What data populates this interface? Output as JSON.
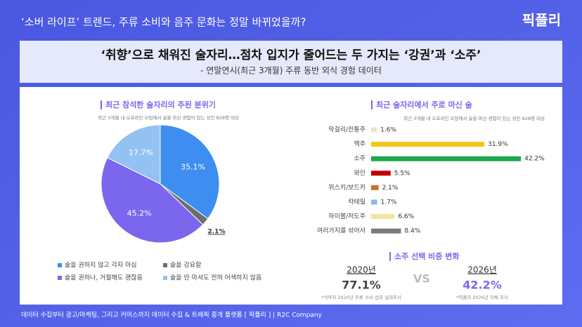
{
  "header": {
    "title": "‘소버 라이프’ 트렌드, 주류 소비와 음주 문화는 정말 바뀌었을까?",
    "logo": "픽플리"
  },
  "banner": {
    "title": "‘취향’으로 채워진 술자리…점차 입지가 줄어드는 두 가지는 ‘강권’과 ‘소주’",
    "subtitle": "- 연말연시(최근 3개월) 주류 동반 외식 경험 데이터"
  },
  "chart_data": [
    {
      "type": "pie",
      "title": "최근 참석한 술자리의 주된 분위기",
      "subtitle": "최근 3개월 내 오프라인 모임에서 술을 마신 경험이 있는 성인 828명 대상",
      "categories": [
        "술을 권하지 않고 각자 마심",
        "술을 강요함",
        "술을 권하나, 거절해도 괜찮음",
        "술을 안 마셔도 전혀 어색하지 않음"
      ],
      "values": [
        35.1,
        2.1,
        45.2,
        17.7
      ],
      "value_labels": [
        "35.1%",
        "2.1%",
        "45.2%",
        "17.7%"
      ],
      "colors": [
        "#3d8ef0",
        "#6e6e6e",
        "#7a67ee",
        "#93c2f2"
      ]
    },
    {
      "type": "hbar",
      "title": "최근 술자리에서 주로 마신 술",
      "subtitle": "최근 3개월 내 오프라인 모임에서 술을 마신 경험이 있는 성인 828명 대상",
      "categories": [
        "막걸리/전통주",
        "맥주",
        "소주",
        "와인",
        "위스키/보드카",
        "칵테일",
        "하이볼/저도주",
        "여러가지를 섞어서"
      ],
      "values": [
        1.6,
        31.9,
        42.2,
        5.5,
        2.1,
        1.7,
        6.6,
        8.4
      ],
      "value_labels": [
        "1.6%",
        "31.9%",
        "42.2%",
        "5.5%",
        "2.1%",
        "1.7%",
        "6.6%",
        "8.4%"
      ],
      "colors": [
        "#e9e2cf",
        "#f4c51a",
        "#1ba84b",
        "#c00000",
        "#d5692a",
        "#8ab6f2",
        "#f3e4a2",
        "#7a7a7a"
      ]
    }
  ],
  "comparison": {
    "title": "소주 선택 비중 변화",
    "vs": "VS",
    "items": [
      {
        "year": "2020년",
        "value": "77.1%",
        "note": "*식약처 2020년 주류 소비·섭취 실태조사"
      },
      {
        "year": "2026년",
        "value": "42.2%",
        "note": "*픽플리 2026년 자체 조사"
      }
    ]
  },
  "footer": "데이터 수집부터 광고/마케팅, 그리고 커머스까지 데이터 수집 & 트래픽 중개 플랫폼 [ 픽플리 ] | R2C Company"
}
